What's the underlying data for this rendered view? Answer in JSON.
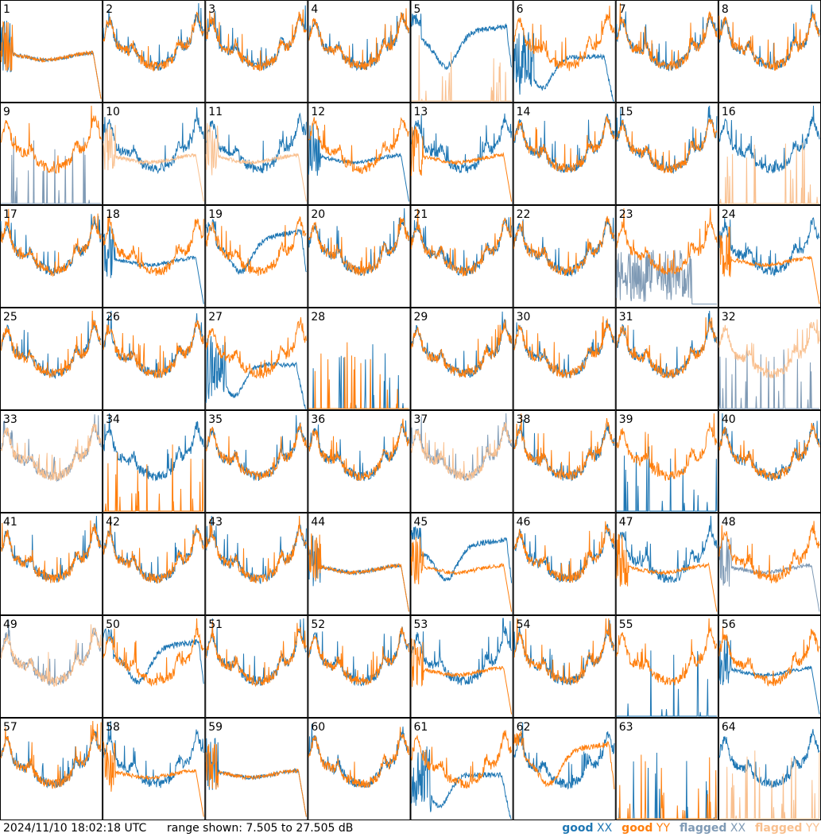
{
  "chart_data": {
    "type": "line",
    "grid": {
      "rows": 8,
      "cols": 8
    },
    "y_range_db": [
      7.505,
      27.505
    ],
    "series_styles": [
      {
        "key": "good_xx",
        "label": "good",
        "pol": "XX",
        "color": "#1f77b4"
      },
      {
        "key": "good_yy",
        "label": "good",
        "pol": "YY",
        "color": "#ff7f0e"
      },
      {
        "key": "flagged_xx",
        "label": "flagged",
        "pol": "XX",
        "color": "#7f9ab5"
      },
      {
        "key": "flagged_yy",
        "label": "flagged",
        "pol": "YY",
        "color": "#f9c08f"
      }
    ],
    "panels": [
      {
        "id": "1",
        "xx": "good",
        "yy": "good",
        "xx_shape": "roll",
        "yy_shape": "roll"
      },
      {
        "id": "2",
        "xx": "good",
        "yy": "good",
        "xx_shape": "normal",
        "yy_shape": "normal"
      },
      {
        "id": "3",
        "xx": "good",
        "yy": "good",
        "xx_shape": "normal",
        "yy_shape": "normal"
      },
      {
        "id": "4",
        "xx": "good",
        "yy": "good",
        "xx_shape": "normal",
        "yy_shape": "normal"
      },
      {
        "id": "5",
        "xx": "good",
        "yy": "flagged",
        "xx_shape": "dip",
        "yy_shape": "dead"
      },
      {
        "id": "6",
        "xx": "good",
        "yy": "good",
        "xx_shape": "deep",
        "yy_shape": "normal"
      },
      {
        "id": "7",
        "xx": "good",
        "yy": "good",
        "xx_shape": "normal",
        "yy_shape": "normal"
      },
      {
        "id": "8",
        "xx": "good",
        "yy": "good",
        "xx_shape": "normal",
        "yy_shape": "normal"
      },
      {
        "id": "9",
        "xx": "flagged",
        "yy": "good",
        "xx_shape": "dead",
        "yy_shape": "normal"
      },
      {
        "id": "10",
        "xx": "good",
        "yy": "flagged",
        "xx_shape": "normal",
        "yy_shape": "roll"
      },
      {
        "id": "11",
        "xx": "good",
        "yy": "flagged",
        "xx_shape": "normal",
        "yy_shape": "roll"
      },
      {
        "id": "12",
        "xx": "good",
        "yy": "good",
        "xx_shape": "roll",
        "yy_shape": "normal"
      },
      {
        "id": "13",
        "xx": "good",
        "yy": "good",
        "xx_shape": "normal",
        "yy_shape": "roll"
      },
      {
        "id": "14",
        "xx": "good",
        "yy": "good",
        "xx_shape": "normal",
        "yy_shape": "normal"
      },
      {
        "id": "15",
        "xx": "good",
        "yy": "good",
        "xx_shape": "normal",
        "yy_shape": "normal"
      },
      {
        "id": "16",
        "xx": "good",
        "yy": "flagged",
        "xx_shape": "normal",
        "yy_shape": "dead"
      },
      {
        "id": "17",
        "xx": "good",
        "yy": "good",
        "xx_shape": "normal",
        "yy_shape": "normal"
      },
      {
        "id": "18",
        "xx": "good",
        "yy": "good",
        "xx_shape": "roll",
        "yy_shape": "normal"
      },
      {
        "id": "19",
        "xx": "good",
        "yy": "good",
        "xx_shape": "dip",
        "yy_shape": "normal"
      },
      {
        "id": "20",
        "xx": "good",
        "yy": "good",
        "xx_shape": "normal",
        "yy_shape": "normal"
      },
      {
        "id": "21",
        "xx": "good",
        "yy": "good",
        "xx_shape": "normal",
        "yy_shape": "normal"
      },
      {
        "id": "22",
        "xx": "good",
        "yy": "good",
        "xx_shape": "normal",
        "yy_shape": "normal"
      },
      {
        "id": "23",
        "xx": "flagged",
        "yy": "good",
        "xx_shape": "noisy",
        "yy_shape": "normal"
      },
      {
        "id": "24",
        "xx": "good",
        "yy": "good",
        "xx_shape": "normal",
        "yy_shape": "roll"
      },
      {
        "id": "25",
        "xx": "good",
        "yy": "good",
        "xx_shape": "normal",
        "yy_shape": "normal"
      },
      {
        "id": "26",
        "xx": "good",
        "yy": "good",
        "xx_shape": "normal",
        "yy_shape": "normal"
      },
      {
        "id": "27",
        "xx": "good",
        "yy": "good",
        "xx_shape": "deep",
        "yy_shape": "normal"
      },
      {
        "id": "28",
        "xx": "good",
        "yy": "good",
        "xx_shape": "dead",
        "yy_shape": "dead"
      },
      {
        "id": "29",
        "xx": "good",
        "yy": "good",
        "xx_shape": "normal",
        "yy_shape": "normal"
      },
      {
        "id": "30",
        "xx": "good",
        "yy": "good",
        "xx_shape": "normal",
        "yy_shape": "normal"
      },
      {
        "id": "31",
        "xx": "good",
        "yy": "good",
        "xx_shape": "normal",
        "yy_shape": "normal"
      },
      {
        "id": "32",
        "xx": "flagged",
        "yy": "flagged",
        "xx_shape": "dead",
        "yy_shape": "normal"
      },
      {
        "id": "33",
        "xx": "flagged",
        "yy": "flagged",
        "xx_shape": "normal",
        "yy_shape": "normal"
      },
      {
        "id": "34",
        "xx": "good",
        "yy": "good",
        "xx_shape": "normal",
        "yy_shape": "dead"
      },
      {
        "id": "35",
        "xx": "good",
        "yy": "good",
        "xx_shape": "normal",
        "yy_shape": "normal"
      },
      {
        "id": "36",
        "xx": "good",
        "yy": "good",
        "xx_shape": "normal",
        "yy_shape": "normal"
      },
      {
        "id": "37",
        "xx": "flagged",
        "yy": "flagged",
        "xx_shape": "normal",
        "yy_shape": "normal"
      },
      {
        "id": "38",
        "xx": "good",
        "yy": "good",
        "xx_shape": "normal",
        "yy_shape": "normal"
      },
      {
        "id": "39",
        "xx": "good",
        "yy": "good",
        "xx_shape": "dead",
        "yy_shape": "normal"
      },
      {
        "id": "40",
        "xx": "good",
        "yy": "good",
        "xx_shape": "normal",
        "yy_shape": "normal"
      },
      {
        "id": "41",
        "xx": "good",
        "yy": "good",
        "xx_shape": "normal",
        "yy_shape": "normal"
      },
      {
        "id": "42",
        "xx": "good",
        "yy": "good",
        "xx_shape": "normal",
        "yy_shape": "normal"
      },
      {
        "id": "43",
        "xx": "good",
        "yy": "good",
        "xx_shape": "normal",
        "yy_shape": "normal"
      },
      {
        "id": "44",
        "xx": "good",
        "yy": "good",
        "xx_shape": "roll",
        "yy_shape": "roll"
      },
      {
        "id": "45",
        "xx": "good",
        "yy": "good",
        "xx_shape": "dip",
        "yy_shape": "roll"
      },
      {
        "id": "46",
        "xx": "good",
        "yy": "good",
        "xx_shape": "normal",
        "yy_shape": "normal"
      },
      {
        "id": "47",
        "xx": "good",
        "yy": "good",
        "xx_shape": "normal",
        "yy_shape": "roll"
      },
      {
        "id": "48",
        "xx": "flagged",
        "yy": "good",
        "xx_shape": "roll",
        "yy_shape": "normal"
      },
      {
        "id": "49",
        "xx": "flagged",
        "yy": "flagged",
        "xx_shape": "normal",
        "yy_shape": "normal"
      },
      {
        "id": "50",
        "xx": "good",
        "yy": "good",
        "xx_shape": "dip",
        "yy_shape": "normal"
      },
      {
        "id": "51",
        "xx": "good",
        "yy": "good",
        "xx_shape": "normal",
        "yy_shape": "normal"
      },
      {
        "id": "52",
        "xx": "good",
        "yy": "good",
        "xx_shape": "normal",
        "yy_shape": "normal"
      },
      {
        "id": "53",
        "xx": "good",
        "yy": "good",
        "xx_shape": "normal",
        "yy_shape": "roll"
      },
      {
        "id": "54",
        "xx": "good",
        "yy": "good",
        "xx_shape": "normal",
        "yy_shape": "normal"
      },
      {
        "id": "55",
        "xx": "good",
        "yy": "good",
        "xx_shape": "dead",
        "yy_shape": "normal"
      },
      {
        "id": "56",
        "xx": "good",
        "yy": "good",
        "xx_shape": "roll",
        "yy_shape": "normal"
      },
      {
        "id": "57",
        "xx": "good",
        "yy": "good",
        "xx_shape": "normal",
        "yy_shape": "normal"
      },
      {
        "id": "58",
        "xx": "good",
        "yy": "good",
        "xx_shape": "normal",
        "yy_shape": "roll"
      },
      {
        "id": "59",
        "xx": "good",
        "yy": "good",
        "xx_shape": "roll",
        "yy_shape": "roll"
      },
      {
        "id": "60",
        "xx": "good",
        "yy": "good",
        "xx_shape": "normal",
        "yy_shape": "normal"
      },
      {
        "id": "61",
        "xx": "good",
        "yy": "good",
        "xx_shape": "deep",
        "yy_shape": "normal"
      },
      {
        "id": "62",
        "xx": "good",
        "yy": "good",
        "xx_shape": "normal",
        "yy_shape": "dip"
      },
      {
        "id": "63",
        "xx": "good",
        "yy": "good",
        "xx_shape": "dead",
        "yy_shape": "dead"
      },
      {
        "id": "64",
        "xx": "good",
        "yy": "flagged",
        "xx_shape": "normal",
        "yy_shape": "dead"
      }
    ]
  },
  "footer": {
    "timestamp": "2024/11/10 18:02:18 UTC",
    "range_text": "range shown: 7.505 to 27.505 dB"
  },
  "legend": {
    "items": [
      {
        "label": "good",
        "pol": "XX",
        "color": "#1f77b4"
      },
      {
        "label": "good",
        "pol": "YY",
        "color": "#ff7f0e"
      },
      {
        "label": "flagged",
        "pol": "XX",
        "color": "#7f9ab5"
      },
      {
        "label": "flagged",
        "pol": "YY",
        "color": "#f9c08f"
      }
    ]
  }
}
